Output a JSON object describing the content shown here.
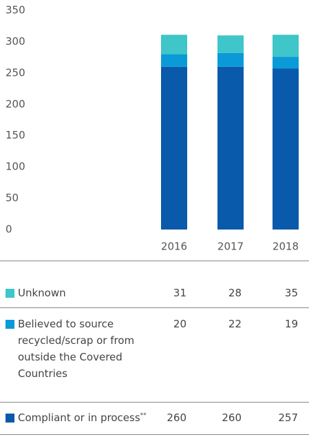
{
  "chart_data": {
    "type": "stacked_bar",
    "categories": [
      "2016",
      "2017",
      "2018"
    ],
    "series": [
      {
        "name": "Compliant or in process",
        "footnote_marker": "**",
        "color": "#0a5aab",
        "values": [
          260,
          260,
          257
        ]
      },
      {
        "name": "Believed to source recycled/scrap or from outside the Covered Countries",
        "color": "#0a9ad8",
        "values": [
          20,
          22,
          19
        ]
      },
      {
        "name": "Unknown",
        "color": "#3ec6c9",
        "values": [
          31,
          28,
          35
        ]
      }
    ],
    "ylim": [
      0,
      350
    ],
    "yticks": [
      0,
      50,
      100,
      150,
      200,
      250,
      300,
      350
    ],
    "grid": false
  }
}
